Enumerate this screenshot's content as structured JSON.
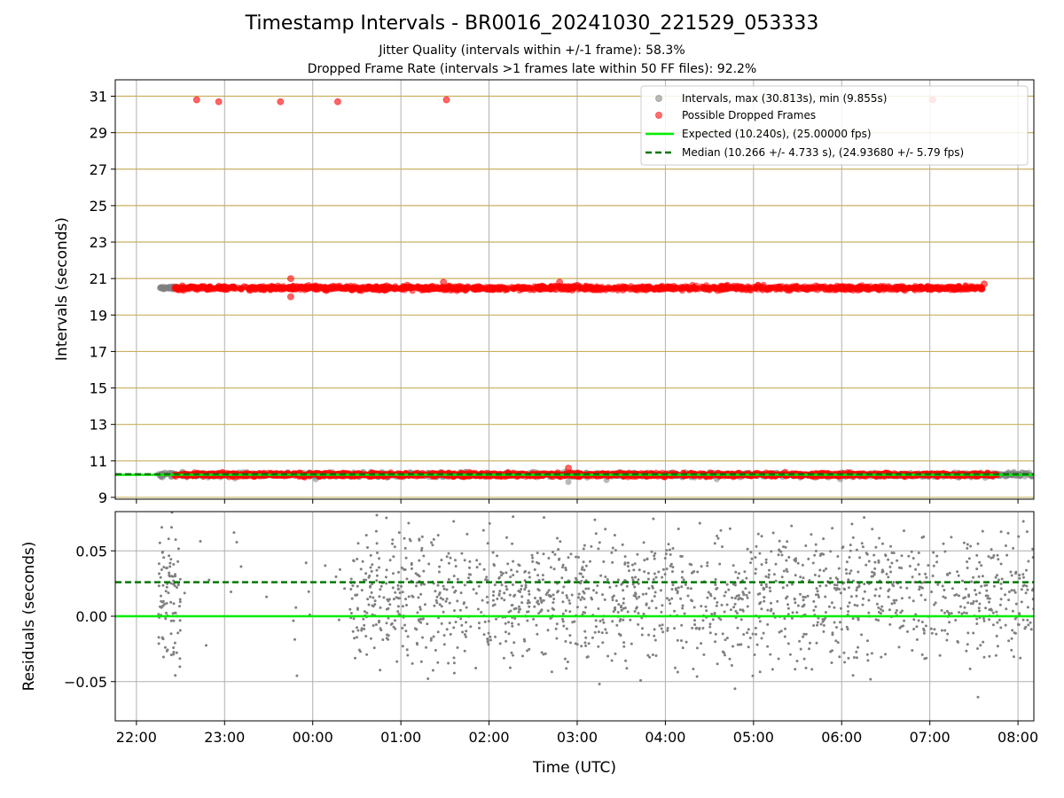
{
  "figure": {
    "title": "Timestamp Intervals - BR0016_20241030_221529_053333",
    "subtitle_1": "Jitter Quality (intervals within +/-1 frame): 58.3%",
    "subtitle_2": "Dropped Frame Rate (intervals >1 frames late within 50 FF files): 92.2%"
  },
  "colors": {
    "intervals": "#808080",
    "dropped": "#ff0000",
    "expected": "#00ee00",
    "median": "#007700",
    "hgrid_top": "#c8b060",
    "grid": "#b0b0b0"
  },
  "chart_data": [
    {
      "type": "scatter",
      "panel": "top",
      "ylabel": "Intervals (seconds)",
      "ylim": [
        8.9,
        31.9
      ],
      "yticks": [
        "9",
        "11",
        "13",
        "15",
        "17",
        "19",
        "21",
        "23",
        "25",
        "27",
        "29",
        "31"
      ],
      "xlim_hours": [
        -2.24,
        8.18
      ],
      "grid": true,
      "legend_placement": "top-right",
      "legend": {
        "intervals": "Intervals, max (30.813s), min (9.855s)",
        "dropped": "Possible Dropped Frames",
        "expected": "Expected (10.240s), (25.00000 fps)",
        "median": "Median (10.266 +/- 4.733 s), (24.93680 +/- 5.79 fps)"
      },
      "series": [
        {
          "name": "Intervals, max (30.813s), min (9.855s)",
          "marker": "circle",
          "bands": [
            {
              "x_start": "22:15",
              "x_end": "08:11",
              "y": 10.24,
              "spread": 0.12,
              "note_dense": true
            },
            {
              "x_start": "22:16",
              "x_end": "22:28",
              "y": 20.48,
              "spread": 0.1
            }
          ]
        },
        {
          "name": "Possible Dropped Frames",
          "marker": "circle",
          "bands": [
            {
              "x_start": "22:26",
              "x_end": "07:36",
              "y": 20.48,
              "spread": 0.12
            },
            {
              "x_start": "22:26",
              "x_end": "07:46",
              "y": 10.24,
              "spread": 0.1
            }
          ],
          "points": [
            {
              "x": "22:41",
              "y": 30.8
            },
            {
              "x": "22:56",
              "y": 30.7
            },
            {
              "x": "23:38",
              "y": 30.7
            },
            {
              "x": "00:17",
              "y": 30.7
            },
            {
              "x": "01:31",
              "y": 30.8
            },
            {
              "x": "07:02",
              "y": 30.8
            },
            {
              "x": "23:45",
              "y": 21.0
            },
            {
              "x": "23:45",
              "y": 20.0
            },
            {
              "x": "01:29",
              "y": 20.8
            },
            {
              "x": "02:48",
              "y": 20.8
            },
            {
              "x": "02:54",
              "y": 10.6
            },
            {
              "x": "07:37",
              "y": 20.7
            }
          ]
        },
        {
          "name": "Expected (10.240s), (25.00000 fps)",
          "line": "solid",
          "y": 10.24
        },
        {
          "name": "Median (10.266 +/- 4.733 s), (24.93680 +/- 5.79 fps)",
          "line": "dashed",
          "y": 10.266
        }
      ]
    },
    {
      "type": "scatter",
      "panel": "bottom",
      "xlabel": "Time (UTC)",
      "ylabel": "Residuals (seconds)",
      "ylim": [
        -0.08,
        0.08
      ],
      "yticks": [
        "−0.05",
        "0.00",
        "0.05"
      ],
      "xlim_hours": [
        -2.24,
        8.18
      ],
      "xticks": [
        "22:00",
        "23:00",
        "00:00",
        "01:00",
        "02:00",
        "03:00",
        "04:00",
        "05:00",
        "06:00",
        "07:00",
        "08:00"
      ],
      "grid": true,
      "series": [
        {
          "name": "residuals",
          "marker": "dot",
          "x_start": "22:15",
          "x_end": "08:11",
          "center": 0.015,
          "spread": 0.03,
          "sparse_between": [
            "22:30",
            "00:26"
          ]
        },
        {
          "name": "expected",
          "line": "solid",
          "y": 0.0
        },
        {
          "name": "median",
          "line": "dashed",
          "y": 0.026
        }
      ]
    }
  ]
}
